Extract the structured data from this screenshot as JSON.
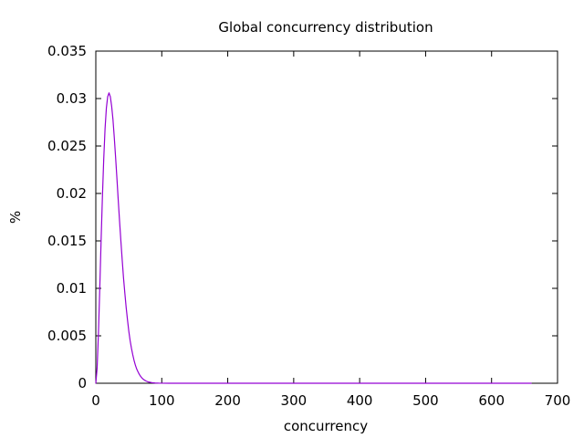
{
  "chart_data": {
    "type": "line",
    "title": "Global concurrency distribution",
    "xlabel": "concurrency",
    "ylabel": "%",
    "xlim": [
      0,
      700
    ],
    "ylim": [
      0,
      0.035
    ],
    "x_ticks": [
      0,
      100,
      200,
      300,
      400,
      500,
      600,
      700
    ],
    "x_tick_labels": [
      "0",
      "100",
      "200",
      "300",
      "400",
      "500",
      "600",
      "700"
    ],
    "y_ticks": [
      0,
      0.005,
      0.01,
      0.015,
      0.02,
      0.025,
      0.03,
      0.035
    ],
    "y_tick_labels": [
      "0",
      "0.005",
      "0.01",
      "0.015",
      "0.02",
      "0.025",
      "0.03",
      "0.035"
    ],
    "grid": false,
    "legend": "none",
    "series": [
      {
        "color": "#9400d3",
        "x": [
          0,
          2,
          4,
          6,
          8,
          10,
          12,
          14,
          16,
          18,
          20,
          22,
          24,
          26,
          28,
          30,
          32,
          34,
          36,
          38,
          40,
          42,
          44,
          46,
          48,
          50,
          52,
          54,
          56,
          58,
          60,
          62,
          64,
          66,
          68,
          70,
          72,
          74,
          76,
          78,
          80,
          85,
          90,
          95,
          100,
          110,
          120,
          150,
          200,
          300,
          400,
          500,
          600,
          660
        ],
        "y": [
          0,
          0.0016,
          0.0053,
          0.01,
          0.015,
          0.0196,
          0.0236,
          0.0268,
          0.029,
          0.0302,
          0.0306,
          0.0302,
          0.0292,
          0.0278,
          0.0259,
          0.0238,
          0.0216,
          0.0193,
          0.0171,
          0.015,
          0.013,
          0.0111,
          0.0095,
          0.008,
          0.0067,
          0.0055,
          0.0045,
          0.0037,
          0.003,
          0.0024,
          0.0019,
          0.0015,
          0.0012,
          0.00093,
          0.00072,
          0.00055,
          0.00042,
          0.00032,
          0.00024,
          0.00018,
          0.00013,
          6e-05,
          2.5e-05,
          1e-05,
          4e-06,
          0,
          0,
          0,
          0,
          0,
          0,
          0,
          0,
          0
        ]
      }
    ]
  }
}
